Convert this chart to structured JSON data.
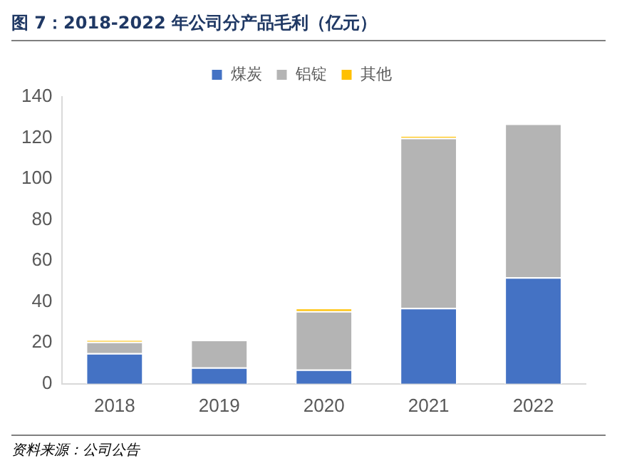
{
  "chart_data": {
    "type": "bar",
    "title": "图 7：2018-2022 年公司分产品毛利（亿元）",
    "categories": [
      "2018",
      "2019",
      "2020",
      "2021",
      "2022"
    ],
    "stacked": true,
    "series": [
      {
        "name": "煤炭",
        "color": "#4472c4",
        "values": [
          15,
          8,
          7,
          37,
          52
        ]
      },
      {
        "name": "铝锭",
        "color": "#b4b4b4",
        "values": [
          5.5,
          13.5,
          28.5,
          83,
          75
        ]
      },
      {
        "name": "其他",
        "color": "#ffc000",
        "values": [
          1,
          0,
          1.5,
          1,
          0
        ]
      }
    ],
    "ylim": [
      0,
      140
    ],
    "yticks": [
      0,
      20,
      40,
      60,
      80,
      100,
      120,
      140
    ],
    "grid": false,
    "legend": "top",
    "annotations": [
      "资料来源：公司公告"
    ]
  }
}
